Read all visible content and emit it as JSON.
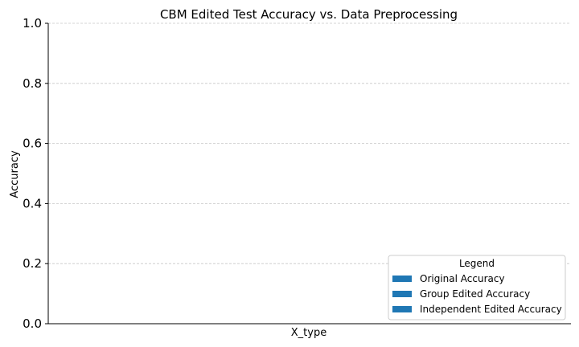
{
  "chart_data": {
    "type": "bar",
    "title": "CBM Edited Test Accuracy vs. Data Preprocessing",
    "xlabel": "X_type",
    "ylabel": "Accuracy",
    "categories": [],
    "ylim": [
      0,
      1.0
    ],
    "yticks": [
      "0.0",
      "0.2",
      "0.4",
      "0.6",
      "0.8",
      "1.0"
    ],
    "grid": "y-dashed",
    "legend": {
      "title": "Legend",
      "placement": "lower-right",
      "entries": [
        {
          "label": "Original Accuracy",
          "color": "#1f77b4"
        },
        {
          "label": "Group Edited Accuracy",
          "color": "#1f77b4"
        },
        {
          "label": "Independent Edited Accuracy",
          "color": "#1f77b4"
        }
      ]
    },
    "series": [
      {
        "name": "Original Accuracy",
        "values": []
      },
      {
        "name": "Group Edited Accuracy",
        "values": []
      },
      {
        "name": "Independent Edited Accuracy",
        "values": []
      }
    ]
  }
}
